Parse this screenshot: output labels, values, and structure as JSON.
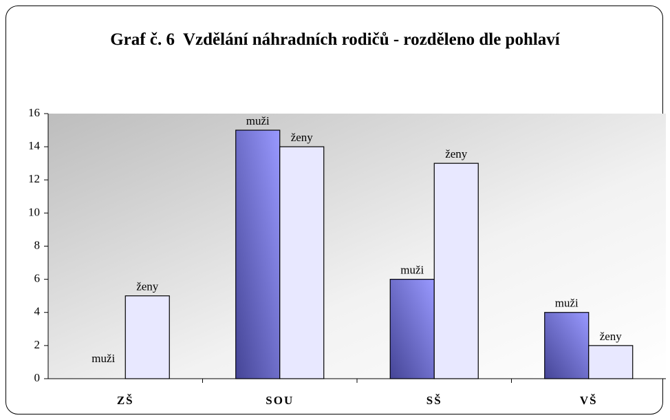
{
  "chart_data": {
    "type": "bar",
    "title": "Graf č. 6  Vzdělání náhradních rodičů - rozděleno dle pohlaví",
    "categories": [
      "ZŠ",
      "SOU",
      "SŠ",
      "VŠ"
    ],
    "series": [
      {
        "name": "muži",
        "color": "#9999ff",
        "values": [
          0,
          15,
          6,
          4
        ]
      },
      {
        "name": "ženy",
        "color": "#e8e8ff",
        "values": [
          5,
          14,
          13,
          2
        ]
      }
    ],
    "ylim": [
      0,
      16
    ],
    "yticks": [
      0,
      2,
      4,
      6,
      8,
      10,
      12,
      14,
      16
    ],
    "grid": false
  }
}
